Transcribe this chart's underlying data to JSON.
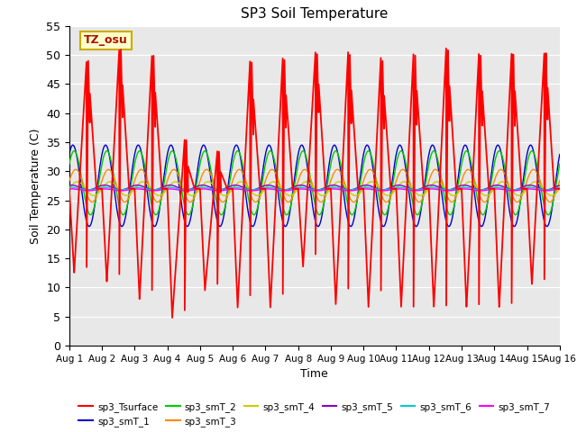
{
  "title": "SP3 Soil Temperature",
  "xlabel": "Time",
  "ylabel": "Soil Temperature (C)",
  "ylim": [
    0,
    55
  ],
  "yticks": [
    0,
    5,
    10,
    15,
    20,
    25,
    30,
    35,
    40,
    45,
    50,
    55
  ],
  "annotation_text": "TZ_osu",
  "annotation_bg": "#FFFFCC",
  "annotation_border": "#CCAA00",
  "background_color": "#E8E8E8",
  "series": [
    {
      "name": "sp3_Tsurface",
      "color": "#FF0000"
    },
    {
      "name": "sp3_smT_1",
      "color": "#0000CC"
    },
    {
      "name": "sp3_smT_2",
      "color": "#00CC00"
    },
    {
      "name": "sp3_smT_3",
      "color": "#FF8800"
    },
    {
      "name": "sp3_smT_4",
      "color": "#CCCC00"
    },
    {
      "name": "sp3_smT_5",
      "color": "#8800CC"
    },
    {
      "name": "sp3_smT_6",
      "color": "#00CCCC"
    },
    {
      "name": "sp3_smT_7",
      "color": "#FF00FF"
    }
  ],
  "n_days": 15,
  "pts_per_day": 288,
  "surface_night": 27.0,
  "surface_peak": 50.0,
  "surface_low": 8.0,
  "depth_baselines": [
    27.5,
    28.0,
    27.5,
    27.0,
    27.2,
    27.0,
    26.8
  ],
  "depth_amplitudes": [
    7.0,
    5.5,
    2.8,
    1.2,
    0.4,
    0.2,
    0.15
  ],
  "depth_phase_offsets": [
    0.03,
    0.07,
    0.12,
    0.17,
    0.0,
    0.0,
    0.0
  ],
  "surface_day_highs": [
    49.0,
    51.0,
    50.0,
    35.5,
    33.5,
    49.0,
    49.5,
    50.5,
    50.5,
    49.5,
    50.5,
    51.5,
    50.5,
    50.5,
    50.5
  ],
  "surface_day_lows": [
    12.5,
    11.0,
    8.0,
    4.8,
    9.5,
    6.5,
    6.5,
    13.5,
    7.0,
    6.5,
    6.5,
    6.5,
    6.5,
    6.5,
    10.5
  ],
  "surface_peak_time": 0.58,
  "surface_low_time": 0.15
}
